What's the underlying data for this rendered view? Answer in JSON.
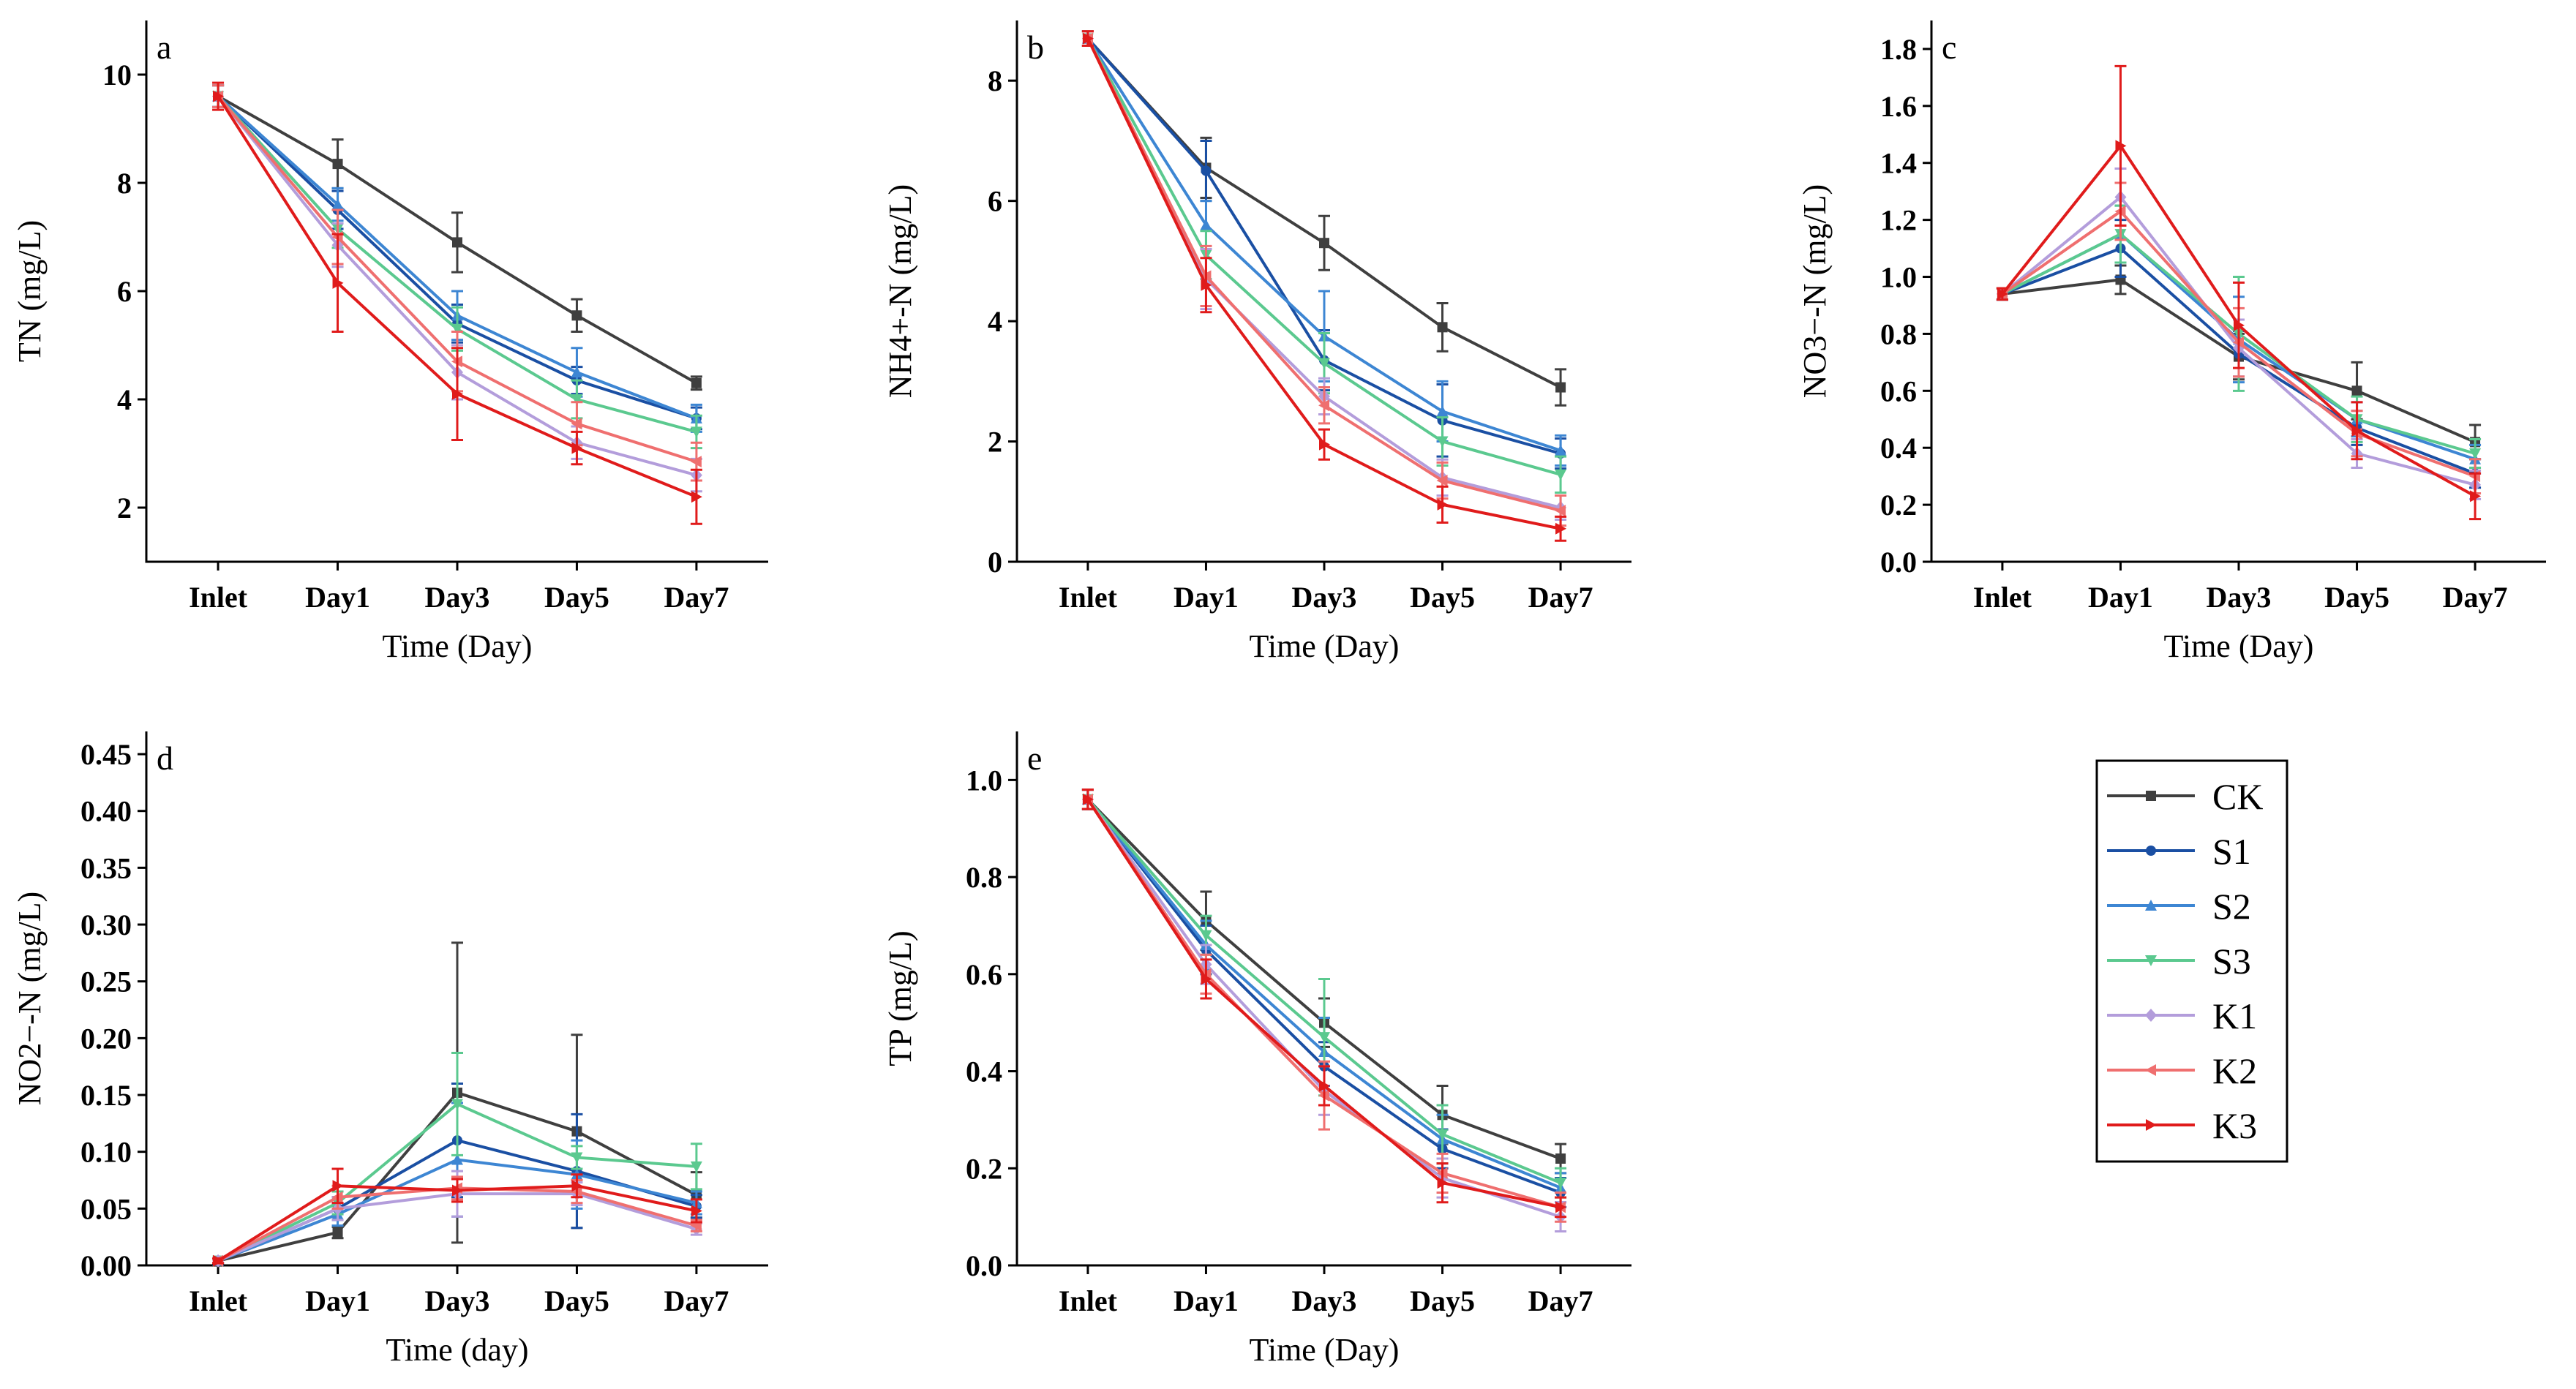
{
  "series_styles": [
    {
      "name": "CK",
      "color": "#3f3f3f",
      "marker": "square"
    },
    {
      "name": "S1",
      "color": "#1a4fa3",
      "marker": "circle"
    },
    {
      "name": "S2",
      "color": "#3d86d3",
      "marker": "triangle-up"
    },
    {
      "name": "S3",
      "color": "#5bc98f",
      "marker": "triangle-down"
    },
    {
      "name": "K1",
      "color": "#b39ddb",
      "marker": "diamond"
    },
    {
      "name": "K2",
      "color": "#ef6f6f",
      "marker": "triangle-left"
    },
    {
      "name": "K3",
      "color": "#e01b1b",
      "marker": "triangle-right"
    }
  ],
  "chart_data": [
    {
      "type": "line",
      "panel_label": "a",
      "categories": [
        "Inlet",
        "Day1",
        "Day3",
        "Day5",
        "Day7"
      ],
      "xlabel": "Time (Day)",
      "ylabel": "TN (mg/L)",
      "ylim": [
        1,
        11
      ],
      "yticks": [
        "2",
        "4",
        "6",
        "8",
        "10"
      ],
      "series": [
        {
          "name": "CK",
          "values": [
            9.6,
            8.35,
            6.9,
            5.55,
            4.3
          ],
          "errors": [
            0.2,
            0.45,
            0.55,
            0.3,
            0.12
          ]
        },
        {
          "name": "S1",
          "values": [
            9.6,
            7.5,
            5.4,
            4.35,
            3.65
          ],
          "errors": [
            0.2,
            0.35,
            0.35,
            0.25,
            0.2
          ]
        },
        {
          "name": "S2",
          "values": [
            9.6,
            7.6,
            5.55,
            4.5,
            3.65
          ],
          "errors": [
            0.2,
            0.3,
            0.45,
            0.45,
            0.25
          ]
        },
        {
          "name": "S3",
          "values": [
            9.6,
            7.15,
            5.3,
            4.0,
            3.4
          ],
          "errors": [
            0.2,
            0.35,
            0.4,
            0.35,
            0.3
          ]
        },
        {
          "name": "K1",
          "values": [
            9.6,
            6.85,
            4.5,
            3.2,
            2.6
          ],
          "errors": [
            0.2,
            0.4,
            0.5,
            0.3,
            0.3
          ]
        },
        {
          "name": "K2",
          "values": [
            9.6,
            7.0,
            4.7,
            3.55,
            2.85
          ],
          "errors": [
            0.2,
            0.5,
            0.55,
            0.4,
            0.35
          ]
        },
        {
          "name": "K3",
          "values": [
            9.6,
            6.15,
            4.1,
            3.1,
            2.2
          ],
          "errors": [
            0.25,
            0.9,
            0.85,
            0.3,
            0.5
          ]
        }
      ]
    },
    {
      "type": "line",
      "panel_label": "b",
      "categories": [
        "Inlet",
        "Day1",
        "Day3",
        "Day5",
        "Day7"
      ],
      "xlabel": "Time (Day)",
      "ylabel": "NH4+-N (mg/L)",
      "ylim": [
        0,
        9
      ],
      "yticks": [
        "0",
        "2",
        "4",
        "6",
        "8"
      ],
      "series": [
        {
          "name": "CK",
          "values": [
            8.7,
            6.55,
            5.3,
            3.9,
            2.9
          ],
          "errors": [
            0.12,
            0.5,
            0.45,
            0.4,
            0.3
          ]
        },
        {
          "name": "S1",
          "values": [
            8.7,
            6.5,
            3.35,
            2.35,
            1.8
          ],
          "errors": [
            0.12,
            0.5,
            0.5,
            0.6,
            0.25
          ]
        },
        {
          "name": "S2",
          "values": [
            8.7,
            5.6,
            3.75,
            2.5,
            1.85
          ],
          "errors": [
            0.12,
            0.4,
            0.75,
            0.5,
            0.25
          ]
        },
        {
          "name": "S3",
          "values": [
            8.7,
            5.1,
            3.3,
            2.0,
            1.45
          ],
          "errors": [
            0.12,
            0.4,
            0.5,
            0.4,
            0.3
          ]
        },
        {
          "name": "K1",
          "values": [
            8.7,
            4.7,
            2.75,
            1.4,
            0.9
          ],
          "errors": [
            0.12,
            0.5,
            0.3,
            0.3,
            0.2
          ]
        },
        {
          "name": "K2",
          "values": [
            8.7,
            4.75,
            2.6,
            1.35,
            0.85
          ],
          "errors": [
            0.12,
            0.5,
            0.3,
            0.3,
            0.25
          ]
        },
        {
          "name": "K3",
          "values": [
            8.7,
            4.6,
            1.95,
            0.95,
            0.55
          ],
          "errors": [
            0.12,
            0.45,
            0.25,
            0.3,
            0.2
          ]
        }
      ]
    },
    {
      "type": "line",
      "panel_label": "c",
      "categories": [
        "Inlet",
        "Day1",
        "Day3",
        "Day5",
        "Day7"
      ],
      "xlabel": "Time (Day)",
      "ylabel": "NO3−-N (mg/L)",
      "ylim": [
        0,
        1.9
      ],
      "yticks": [
        "0.0",
        "0.2",
        "0.4",
        "0.6",
        "0.8",
        "1.0",
        "1.2",
        "1.4",
        "1.6",
        "1.8"
      ],
      "series": [
        {
          "name": "CK",
          "values": [
            0.94,
            0.99,
            0.72,
            0.6,
            0.42
          ],
          "errors": [
            0.02,
            0.05,
            0.08,
            0.1,
            0.06
          ]
        },
        {
          "name": "S1",
          "values": [
            0.94,
            1.1,
            0.73,
            0.47,
            0.31
          ],
          "errors": [
            0.02,
            0.1,
            0.08,
            0.06,
            0.05
          ]
        },
        {
          "name": "S2",
          "values": [
            0.94,
            1.15,
            0.78,
            0.5,
            0.36
          ],
          "errors": [
            0.02,
            0.1,
            0.15,
            0.06,
            0.05
          ]
        },
        {
          "name": "S3",
          "values": [
            0.94,
            1.15,
            0.8,
            0.5,
            0.38
          ],
          "errors": [
            0.02,
            0.1,
            0.2,
            0.08,
            0.05
          ]
        },
        {
          "name": "K1",
          "values": [
            0.94,
            1.28,
            0.75,
            0.38,
            0.27
          ],
          "errors": [
            0.02,
            0.1,
            0.1,
            0.05,
            0.05
          ]
        },
        {
          "name": "K2",
          "values": [
            0.94,
            1.23,
            0.77,
            0.45,
            0.3
          ],
          "errors": [
            0.02,
            0.1,
            0.12,
            0.08,
            0.06
          ]
        },
        {
          "name": "K3",
          "values": [
            0.94,
            1.46,
            0.83,
            0.46,
            0.23
          ],
          "errors": [
            0.02,
            0.28,
            0.15,
            0.1,
            0.08
          ]
        }
      ]
    },
    {
      "type": "line",
      "panel_label": "d",
      "categories": [
        "Inlet",
        "Day1",
        "Day3",
        "Day5",
        "Day7"
      ],
      "xlabel": "Time (day)",
      "ylabel": "NO2−-N (mg/L)",
      "ylim": [
        0,
        0.47
      ],
      "yticks": [
        "0.00",
        "0.05",
        "0.10",
        "0.15",
        "0.20",
        "0.25",
        "0.30",
        "0.35",
        "0.40",
        "0.45"
      ],
      "series": [
        {
          "name": "CK",
          "values": [
            0.004,
            0.029,
            0.152,
            0.118,
            0.062
          ],
          "errors": [
            0.002,
            0.005,
            0.132,
            0.085,
            0.02
          ]
        },
        {
          "name": "S1",
          "values": [
            0.004,
            0.05,
            0.11,
            0.083,
            0.052
          ],
          "errors": [
            0.002,
            0.01,
            0.05,
            0.05,
            0.01
          ]
        },
        {
          "name": "S2",
          "values": [
            0.004,
            0.045,
            0.093,
            0.08,
            0.055
          ],
          "errors": [
            0.002,
            0.01,
            0.05,
            0.03,
            0.01
          ]
        },
        {
          "name": "S3",
          "values": [
            0.004,
            0.055,
            0.142,
            0.095,
            0.087
          ],
          "errors": [
            0.002,
            0.01,
            0.045,
            0.01,
            0.02
          ]
        },
        {
          "name": "K1",
          "values": [
            0.004,
            0.05,
            0.063,
            0.063,
            0.032
          ],
          "errors": [
            0.002,
            0.01,
            0.02,
            0.01,
            0.005
          ]
        },
        {
          "name": "K2",
          "values": [
            0.004,
            0.06,
            0.068,
            0.065,
            0.035
          ],
          "errors": [
            0.002,
            0.01,
            0.01,
            0.01,
            0.005
          ]
        },
        {
          "name": "K3",
          "values": [
            0.004,
            0.07,
            0.066,
            0.07,
            0.048
          ],
          "errors": [
            0.002,
            0.015,
            0.01,
            0.01,
            0.01
          ]
        }
      ]
    },
    {
      "type": "line",
      "panel_label": "e",
      "categories": [
        "Inlet",
        "Day1",
        "Day3",
        "Day5",
        "Day7"
      ],
      "xlabel": "Time (Day)",
      "ylabel": "TP (mg/L)",
      "ylim": [
        0,
        1.1
      ],
      "yticks": [
        "0.0",
        "0.2",
        "0.4",
        "0.6",
        "0.8",
        "1.0"
      ],
      "series": [
        {
          "name": "CK",
          "values": [
            0.96,
            0.71,
            0.5,
            0.31,
            0.22
          ],
          "errors": [
            0.02,
            0.06,
            0.05,
            0.06,
            0.03
          ]
        },
        {
          "name": "S1",
          "values": [
            0.96,
            0.65,
            0.41,
            0.24,
            0.15
          ],
          "errors": [
            0.02,
            0.05,
            0.05,
            0.04,
            0.03
          ]
        },
        {
          "name": "S2",
          "values": [
            0.96,
            0.66,
            0.44,
            0.26,
            0.16
          ],
          "errors": [
            0.02,
            0.05,
            0.07,
            0.05,
            0.03
          ]
        },
        {
          "name": "S3",
          "values": [
            0.96,
            0.68,
            0.47,
            0.27,
            0.17
          ],
          "errors": [
            0.02,
            0.04,
            0.12,
            0.06,
            0.03
          ]
        },
        {
          "name": "K1",
          "values": [
            0.96,
            0.62,
            0.36,
            0.18,
            0.1
          ],
          "errors": [
            0.02,
            0.04,
            0.05,
            0.04,
            0.03
          ]
        },
        {
          "name": "K2",
          "values": [
            0.96,
            0.6,
            0.35,
            0.19,
            0.12
          ],
          "errors": [
            0.02,
            0.04,
            0.07,
            0.04,
            0.03
          ]
        },
        {
          "name": "K3",
          "values": [
            0.96,
            0.59,
            0.37,
            0.17,
            0.12
          ],
          "errors": [
            0.02,
            0.04,
            0.04,
            0.04,
            0.02
          ]
        }
      ]
    }
  ]
}
